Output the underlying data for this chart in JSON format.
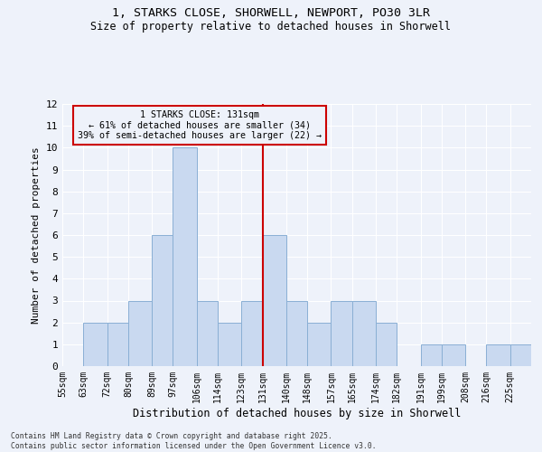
{
  "title_line1": "1, STARKS CLOSE, SHORWELL, NEWPORT, PO30 3LR",
  "title_line2": "Size of property relative to detached houses in Shorwell",
  "xlabel": "Distribution of detached houses by size in Shorwell",
  "ylabel": "Number of detached properties",
  "footnote": "Contains HM Land Registry data © Crown copyright and database right 2025.\nContains public sector information licensed under the Open Government Licence v3.0.",
  "annotation_title": "1 STARKS CLOSE: 131sqm",
  "annotation_line1": "← 61% of detached houses are smaller (34)",
  "annotation_line2": "39% of semi-detached houses are larger (22) →",
  "property_size": 131,
  "vline_x": 131,
  "categories": [
    "55sqm",
    "63sqm",
    "72sqm",
    "80sqm",
    "89sqm",
    "97sqm",
    "106sqm",
    "114sqm",
    "123sqm",
    "131sqm",
    "140sqm",
    "148sqm",
    "157sqm",
    "165sqm",
    "174sqm",
    "182sqm",
    "191sqm",
    "199sqm",
    "208sqm",
    "216sqm",
    "225sqm"
  ],
  "bin_edges": [
    55,
    63,
    72,
    80,
    89,
    97,
    106,
    114,
    123,
    131,
    140,
    148,
    157,
    165,
    174,
    182,
    191,
    199,
    208,
    216,
    225,
    233
  ],
  "values": [
    0,
    2,
    2,
    3,
    6,
    10,
    3,
    2,
    3,
    6,
    3,
    2,
    3,
    3,
    2,
    0,
    1,
    1,
    0,
    1,
    1
  ],
  "bar_color": "#c9d9f0",
  "bar_edge_color": "#8aafd4",
  "vline_color": "#cc0000",
  "annotation_box_edge": "#cc0000",
  "background_color": "#eef2fa",
  "grid_color": "#ffffff",
  "ylim": [
    0,
    12
  ],
  "yticks": [
    0,
    1,
    2,
    3,
    4,
    5,
    6,
    7,
    8,
    9,
    10,
    11,
    12
  ]
}
